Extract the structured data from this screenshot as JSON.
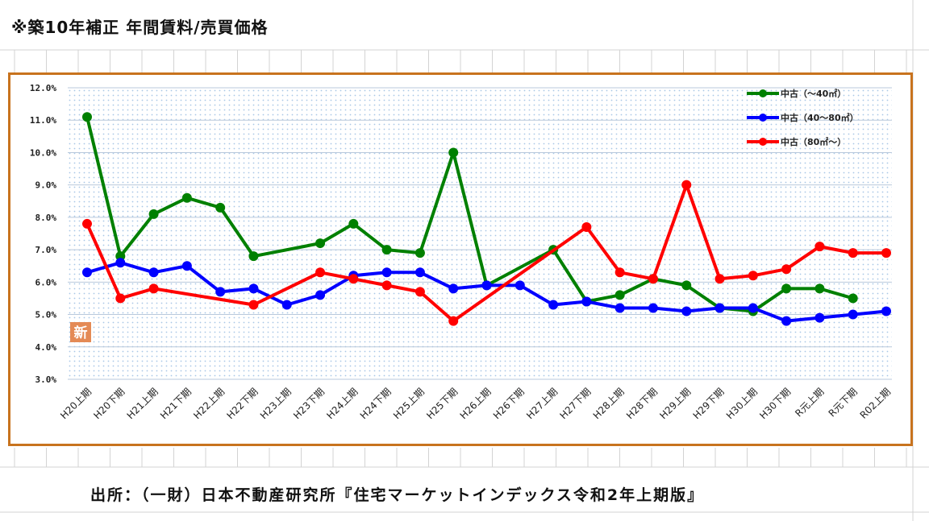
{
  "title": "※築10年補正 年間賃料/売買価格",
  "source": "出所：（一財）日本不動産研究所『住宅マーケットインデックス令和2年上期版』",
  "badge": "新",
  "colors": {
    "frame": "#c8731e",
    "badge": "#e48a55"
  },
  "chart_data": {
    "type": "line",
    "categories": [
      "H20上期",
      "H20下期",
      "H21上期",
      "H21下期",
      "H22上期",
      "H22下期",
      "H23上期",
      "H23下期",
      "H24上期",
      "H24下期",
      "H25上期",
      "H25下期",
      "H26上期",
      "H26下期",
      "H27上期",
      "H27下期",
      "H28上期",
      "H28下期",
      "H29上期",
      "H29下期",
      "H30上期",
      "H30下期",
      "R元上期",
      "R元下期",
      "R02上期"
    ],
    "ylim": [
      3.0,
      12.0
    ],
    "yticks": [
      "3.0%",
      "4.0%",
      "5.0%",
      "6.0%",
      "7.0%",
      "8.0%",
      "9.0%",
      "10.0%",
      "11.0%",
      "12.0%"
    ],
    "legend_position": "top-right",
    "grid": true,
    "series": [
      {
        "name": "中古（～40㎡）",
        "color": "#008000",
        "values": [
          11.1,
          6.8,
          8.1,
          8.6,
          8.3,
          6.8,
          null,
          7.2,
          7.8,
          7.0,
          6.9,
          10.0,
          5.9,
          null,
          7.0,
          5.4,
          5.6,
          6.1,
          5.9,
          5.2,
          5.1,
          5.8,
          5.8,
          5.5,
          null
        ]
      },
      {
        "name": "中古（40～80㎡）",
        "color": "#0000ff",
        "values": [
          6.3,
          6.6,
          6.3,
          6.5,
          5.7,
          5.8,
          5.3,
          5.6,
          6.2,
          6.3,
          6.3,
          5.8,
          5.9,
          5.9,
          5.3,
          5.4,
          5.2,
          5.2,
          5.1,
          5.2,
          5.2,
          4.8,
          4.9,
          5.0,
          5.1
        ]
      },
      {
        "name": "中古（80㎡～）",
        "color": "#ff0000",
        "values": [
          7.8,
          5.5,
          5.8,
          null,
          null,
          5.3,
          null,
          6.3,
          6.1,
          5.9,
          5.7,
          4.8,
          null,
          null,
          null,
          7.7,
          6.3,
          6.1,
          9.0,
          6.1,
          6.2,
          6.4,
          7.1,
          6.9,
          6.9
        ]
      }
    ]
  }
}
